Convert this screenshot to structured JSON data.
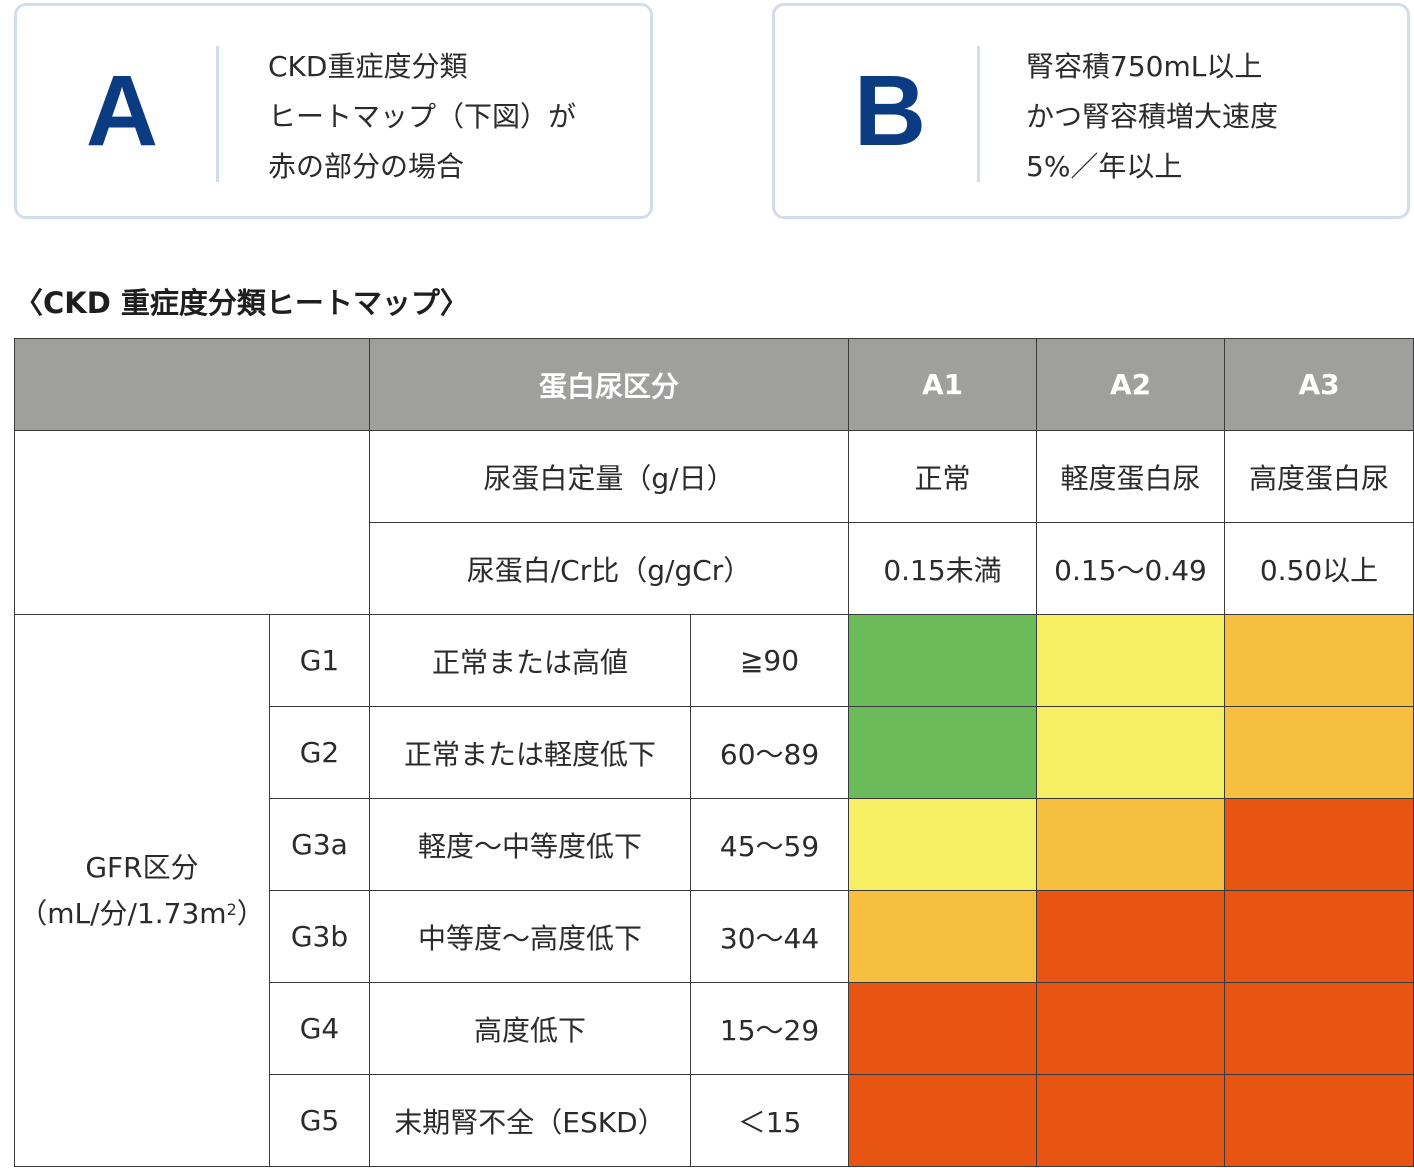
{
  "card_a": {
    "letter": "A",
    "lines": [
      "CKD重症度分類",
      "ヒートマップ（下図）が",
      "赤の部分の場合"
    ]
  },
  "card_b": {
    "letter": "B",
    "lines": [
      "腎容積750mL以上",
      "かつ腎容積増大速度",
      "5%／年以上"
    ]
  },
  "heading": "〈CKD 重症度分類ヒートマップ〉",
  "table": {
    "header": {
      "protein_category": "蛋白尿区分",
      "a_columns": [
        "A1",
        "A2",
        "A3"
      ]
    },
    "urine_protein_row": {
      "label": "尿蛋白定量（g/日）",
      "values": [
        "正常",
        "軽度蛋白尿",
        "高度蛋白尿"
      ]
    },
    "ratio_row": {
      "label": "尿蛋白/Cr比（g/gCr）",
      "values": [
        "0.15未満",
        "0.15～0.49",
        "0.50以上"
      ]
    },
    "gfr_label": {
      "line1": "GFR区分",
      "line2_prefix": "（mL/分/1.73m",
      "line2_sup": "2",
      "line2_suffix": "）"
    },
    "gfr_rows": [
      {
        "stage": "G1",
        "description": "正常または高値",
        "range": "≧90"
      },
      {
        "stage": "G2",
        "description": "正常または軽度低下",
        "range": "60～89"
      },
      {
        "stage": "G3a",
        "description": "軽度～中等度低下",
        "range": "45～59"
      },
      {
        "stage": "G3b",
        "description": "中等度～高度低下",
        "range": "30～44"
      },
      {
        "stage": "G4",
        "description": "高度低下",
        "range": "15～29"
      },
      {
        "stage": "G5",
        "description": "末期腎不全（ESKD）",
        "range": "＜15"
      }
    ],
    "heatmap": [
      [
        "green",
        "yellow",
        "orange"
      ],
      [
        "green",
        "yellow",
        "orange"
      ],
      [
        "yellow",
        "orange",
        "red"
      ],
      [
        "orange",
        "red",
        "red"
      ],
      [
        "red",
        "red",
        "red"
      ],
      [
        "red",
        "red",
        "red"
      ]
    ],
    "colors": {
      "header_gray": "#9fa09e",
      "green": "#6cbb5a",
      "yellow": "#f6ef64",
      "orange": "#f7bf3f",
      "red": "#e85412",
      "letter_navy": "#0b3b80",
      "card_border": "#d3dde9"
    }
  }
}
